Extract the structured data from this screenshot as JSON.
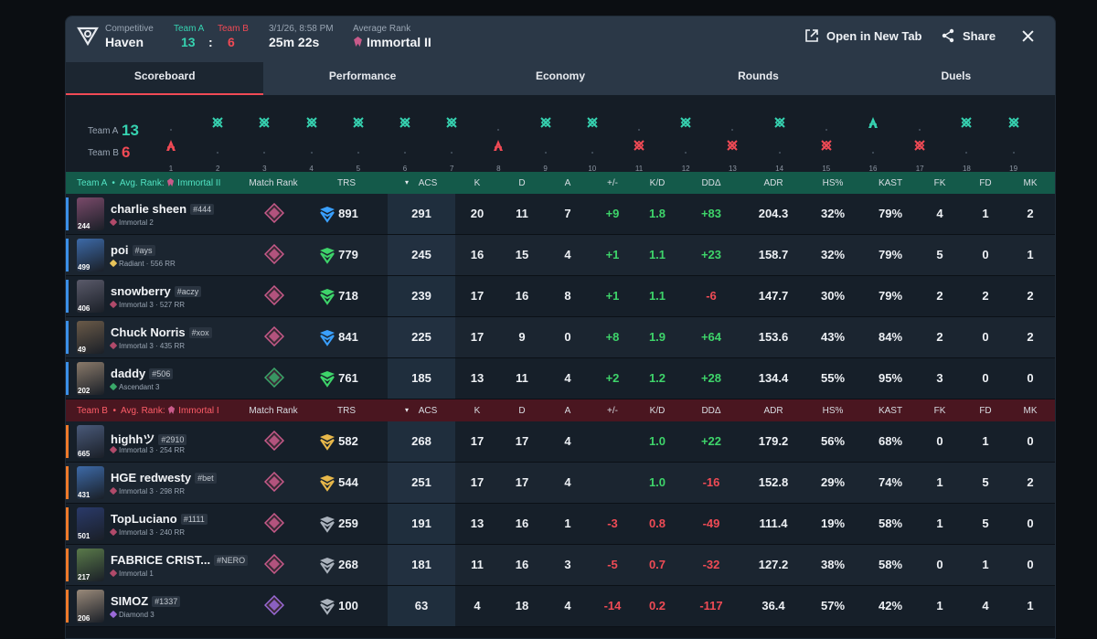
{
  "header": {
    "mode": "Competitive",
    "map": "Haven",
    "team_a_label": "Team A",
    "team_b_label": "Team B",
    "team_a_score": "13",
    "score_sep": ":",
    "team_b_score": "6",
    "date": "3/1/26, 8:58 PM",
    "duration": "25m 22s",
    "avg_rank_label": "Average Rank",
    "avg_rank": "Immortal II",
    "open_new_tab": "Open in New Tab",
    "share": "Share"
  },
  "tabs": [
    "Scoreboard",
    "Performance",
    "Economy",
    "Rounds",
    "Duels"
  ],
  "timeline": {
    "team_a_label": "Team A",
    "team_a_score": "13",
    "team_b_label": "Team B",
    "team_b_score": "6",
    "rounds": [
      {
        "n": "1",
        "winner": "B",
        "type": "elim"
      },
      {
        "n": "2",
        "winner": "A",
        "type": "defuse"
      },
      {
        "n": "3",
        "winner": "A",
        "type": "defuse"
      },
      {
        "n": "4",
        "winner": "A",
        "type": "defuse"
      },
      {
        "n": "5",
        "winner": "A",
        "type": "defuse"
      },
      {
        "n": "6",
        "winner": "A",
        "type": "defuse"
      },
      {
        "n": "7",
        "winner": "A",
        "type": "defuse"
      },
      {
        "n": "8",
        "winner": "B",
        "type": "elim"
      },
      {
        "n": "9",
        "winner": "A",
        "type": "defuse"
      },
      {
        "n": "10",
        "winner": "A",
        "type": "defuse"
      },
      {
        "n": "11",
        "winner": "B",
        "type": "defuse"
      },
      {
        "n": "12",
        "winner": "A",
        "type": "defuse"
      },
      {
        "n": "13",
        "winner": "B",
        "type": "defuse"
      },
      {
        "n": "14",
        "winner": "A",
        "type": "defuse"
      },
      {
        "n": "15",
        "winner": "B",
        "type": "defuse"
      },
      {
        "n": "16",
        "winner": "A",
        "type": "elim"
      },
      {
        "n": "17",
        "winner": "B",
        "type": "defuse"
      },
      {
        "n": "18",
        "winner": "A",
        "type": "defuse"
      },
      {
        "n": "19",
        "winner": "A",
        "type": "defuse"
      }
    ]
  },
  "columns": [
    "Match Rank",
    "TRS",
    "ACS",
    "K",
    "D",
    "A",
    "+/-",
    "K/D",
    "DDΔ",
    "ADR",
    "HS%",
    "KAST",
    "FK",
    "FD",
    "MK"
  ],
  "team_a": {
    "label": "Team A",
    "avg_rank_label": "Avg. Rank:",
    "avg_rank": "Immortal II",
    "players": [
      {
        "name": "charlie sheen",
        "tag": "#444",
        "rank": "Immortal 2",
        "level": "244",
        "trs": "891",
        "acs": "291",
        "k": "20",
        "d": "11",
        "a": "7",
        "pm": "+9",
        "kd": "1.8",
        "dd": "+83",
        "adr": "204.3",
        "hs": "32%",
        "kast": "79%",
        "fk": "4",
        "fd": "1",
        "mk": "2",
        "trs_color": "#3aa0ff",
        "mrank_color": "#c85a8a",
        "avatar": "#7a4a6a",
        "rank_color": "#b04a6a"
      },
      {
        "name": "poi",
        "tag": "#ays",
        "rank": "Radiant · 556 RR",
        "level": "499",
        "trs": "779",
        "acs": "245",
        "k": "16",
        "d": "15",
        "a": "4",
        "pm": "+1",
        "kd": "1.1",
        "dd": "+23",
        "adr": "158.7",
        "hs": "32%",
        "kast": "79%",
        "fk": "5",
        "fd": "0",
        "mk": "1",
        "trs_color": "#3ed46a",
        "mrank_color": "#c85a8a",
        "avatar": "#3d6aa8",
        "rank_color": "#e8c45a"
      },
      {
        "name": "snowberry",
        "tag": "#aczy",
        "rank": "Immortal 3 · 527 RR",
        "level": "406",
        "trs": "718",
        "acs": "239",
        "k": "17",
        "d": "16",
        "a": "8",
        "pm": "+1",
        "kd": "1.1",
        "dd": "-6",
        "adr": "147.7",
        "hs": "30%",
        "kast": "79%",
        "fk": "2",
        "fd": "2",
        "mk": "2",
        "trs_color": "#3ed46a",
        "mrank_color": "#c85a8a",
        "avatar": "#5a5a6a",
        "rank_color": "#b04a6a"
      },
      {
        "name": "Chuck Norris",
        "tag": "#xox",
        "rank": "Immortal 3 · 435 RR",
        "level": "49",
        "trs": "841",
        "acs": "225",
        "k": "17",
        "d": "9",
        "a": "0",
        "pm": "+8",
        "kd": "1.9",
        "dd": "+64",
        "adr": "153.6",
        "hs": "43%",
        "kast": "84%",
        "fk": "2",
        "fd": "0",
        "mk": "2",
        "trs_color": "#3aa0ff",
        "mrank_color": "#c85a8a",
        "avatar": "#6a5a48",
        "rank_color": "#b04a6a"
      },
      {
        "name": "daddy",
        "tag": "#506",
        "rank": "Ascendant 3",
        "level": "202",
        "trs": "761",
        "acs": "185",
        "k": "13",
        "d": "11",
        "a": "4",
        "pm": "+2",
        "kd": "1.2",
        "dd": "+28",
        "adr": "134.4",
        "hs": "55%",
        "kast": "95%",
        "fk": "3",
        "fd": "0",
        "mk": "0",
        "trs_color": "#3ed46a",
        "mrank_color": "#3aa86a",
        "avatar": "#8a7a6a",
        "rank_color": "#3aa86a"
      }
    ]
  },
  "team_b": {
    "label": "Team B",
    "avg_rank_label": "Avg. Rank:",
    "avg_rank": "Immortal I",
    "players": [
      {
        "name": "highhツ",
        "tag": "#2910",
        "rank": "Immortal 3 · 254 RR",
        "level": "665",
        "trs": "582",
        "acs": "268",
        "k": "17",
        "d": "17",
        "a": "4",
        "pm": "",
        "kd": "1.0",
        "dd": "+22",
        "adr": "179.2",
        "hs": "56%",
        "kast": "68%",
        "fk": "0",
        "fd": "1",
        "mk": "0",
        "trs_color": "#e8b84a",
        "mrank_color": "#c85a8a",
        "avatar": "#4a5a7a",
        "rank_color": "#b04a6a"
      },
      {
        "name": "HGE redwesty",
        "tag": "#bet",
        "rank": "Immortal 3 · 298 RR",
        "level": "431",
        "trs": "544",
        "acs": "251",
        "k": "17",
        "d": "17",
        "a": "4",
        "pm": "",
        "kd": "1.0",
        "dd": "-16",
        "adr": "152.8",
        "hs": "29%",
        "kast": "74%",
        "fk": "1",
        "fd": "5",
        "mk": "2",
        "trs_color": "#e8b84a",
        "mrank_color": "#c85a8a",
        "avatar": "#3d6aa8",
        "rank_color": "#b04a6a"
      },
      {
        "name": "TopLuciano",
        "tag": "#1111",
        "rank": "Immortal 3 · 240 RR",
        "level": "501",
        "trs": "259",
        "acs": "191",
        "k": "13",
        "d": "16",
        "a": "1",
        "pm": "-3",
        "kd": "0.8",
        "dd": "-49",
        "adr": "111.4",
        "hs": "19%",
        "kast": "58%",
        "fk": "1",
        "fd": "5",
        "mk": "0",
        "trs_color": "#aab2bc",
        "mrank_color": "#c85a8a",
        "avatar": "#2a3a6a",
        "rank_color": "#b04a6a"
      },
      {
        "name": "FABRICE CRIST...",
        "tag": "#NERO",
        "rank": "Immortal 1",
        "level": "217",
        "trs": "268",
        "acs": "181",
        "k": "11",
        "d": "16",
        "a": "3",
        "pm": "-5",
        "kd": "0.7",
        "dd": "-32",
        "adr": "127.2",
        "hs": "38%",
        "kast": "58%",
        "fk": "0",
        "fd": "1",
        "mk": "0",
        "trs_color": "#aab2bc",
        "mrank_color": "#c85a8a",
        "avatar": "#5a7a4a",
        "rank_color": "#b04a6a"
      },
      {
        "name": "SIMOZ",
        "tag": "#1337",
        "rank": "Diamond 3",
        "level": "206",
        "trs": "100",
        "acs": "63",
        "k": "4",
        "d": "18",
        "a": "4",
        "pm": "-14",
        "kd": "0.2",
        "dd": "-117",
        "adr": "36.4",
        "hs": "57%",
        "kast": "42%",
        "fk": "1",
        "fd": "4",
        "mk": "1",
        "trs_color": "#aab2bc",
        "mrank_color": "#9a6ad8",
        "avatar": "#9a8a7a",
        "rank_color": "#9a6ad8"
      }
    ]
  },
  "colors": {
    "team_a": "#36d2b0",
    "team_b": "#f04a55",
    "positive": "#3ed46a",
    "negative": "#ef4b55"
  }
}
